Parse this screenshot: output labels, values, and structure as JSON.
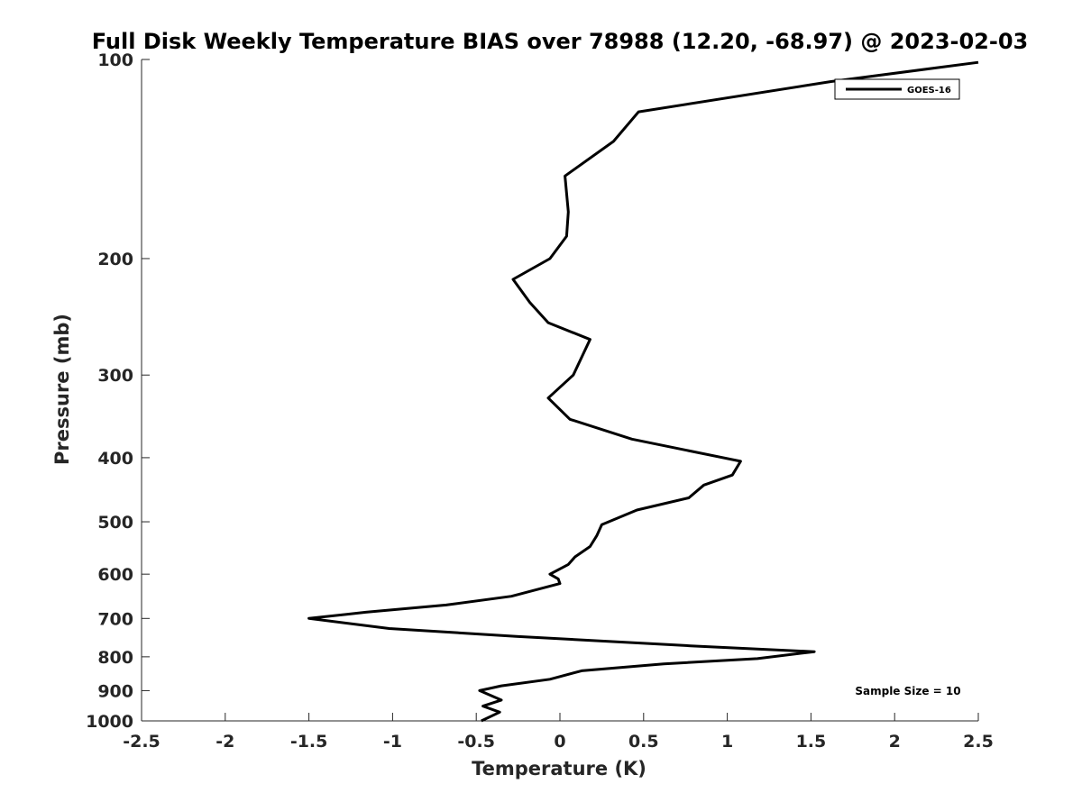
{
  "chart_data": {
    "type": "line",
    "title": "Full Disk Weekly Temperature BIAS over 78988 (12.20, -68.97) @ 2023-02-03",
    "xlabel": "Temperature (K)",
    "ylabel": "Pressure (mb)",
    "xlim": [
      -2.5,
      2.5
    ],
    "ylim": [
      1000,
      100
    ],
    "y_scale": "log",
    "y_reversed": true,
    "x_ticks": [
      "-2.5",
      "-2",
      "-1.5",
      "-1",
      "-0.5",
      "0",
      "0.5",
      "1",
      "1.5",
      "2",
      "2.5"
    ],
    "x_tick_values": [
      -2.5,
      -2,
      -1.5,
      -1,
      -0.5,
      0,
      0.5,
      1,
      1.5,
      2,
      2.5
    ],
    "y_ticks": [
      "100",
      "200",
      "300",
      "400",
      "500",
      "600",
      "700",
      "800",
      "900",
      "1000"
    ],
    "y_tick_values": [
      100,
      200,
      300,
      400,
      500,
      600,
      700,
      800,
      900,
      1000
    ],
    "grid": false,
    "legend_position": "top-right",
    "annotation": "Sample Size = 10",
    "series": [
      {
        "name": "GOES-16",
        "color": "#000000",
        "points": [
          [
            2.5,
            101
          ],
          [
            1.62,
            108
          ],
          [
            0.47,
            120
          ],
          [
            0.32,
            133
          ],
          [
            0.03,
            150
          ],
          [
            0.05,
            170
          ],
          [
            0.04,
            185
          ],
          [
            -0.06,
            200
          ],
          [
            -0.28,
            215
          ],
          [
            -0.18,
            233
          ],
          [
            -0.07,
            250
          ],
          [
            0.18,
            265
          ],
          [
            0.08,
            300
          ],
          [
            -0.07,
            325
          ],
          [
            0.06,
            350
          ],
          [
            0.43,
            375
          ],
          [
            1.08,
            405
          ],
          [
            1.03,
            425
          ],
          [
            0.86,
            440
          ],
          [
            0.77,
            460
          ],
          [
            0.46,
            480
          ],
          [
            0.25,
            505
          ],
          [
            0.22,
            525
          ],
          [
            0.18,
            545
          ],
          [
            0.09,
            565
          ],
          [
            0.05,
            580
          ],
          [
            -0.06,
            600
          ],
          [
            -0.01,
            610
          ],
          [
            0.0,
            620
          ],
          [
            -0.29,
            648
          ],
          [
            -0.68,
            668
          ],
          [
            -1.16,
            685
          ],
          [
            -1.5,
            700
          ],
          [
            -1.02,
            725
          ],
          [
            -0.26,
            745
          ],
          [
            0.78,
            770
          ],
          [
            1.52,
            786
          ],
          [
            1.18,
            805
          ],
          [
            0.62,
            820
          ],
          [
            0.13,
            840
          ],
          [
            -0.06,
            865
          ],
          [
            -0.35,
            885
          ],
          [
            -0.48,
            900
          ],
          [
            -0.35,
            930
          ],
          [
            -0.46,
            950
          ],
          [
            -0.36,
            970
          ],
          [
            -0.47,
            1000
          ]
        ]
      }
    ]
  }
}
